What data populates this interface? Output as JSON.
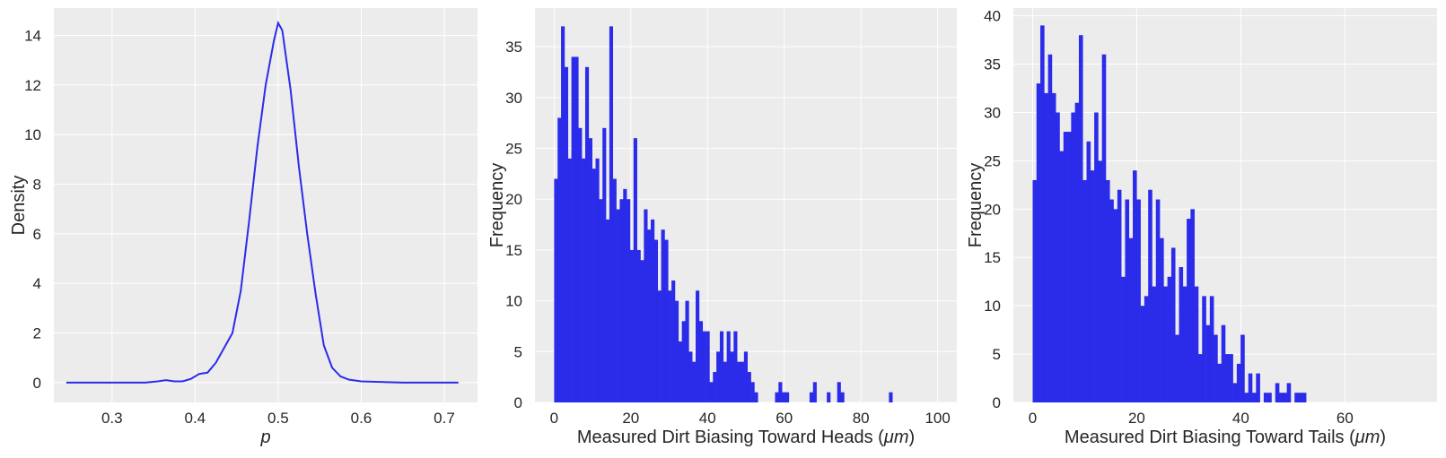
{
  "chart_data": [
    {
      "type": "line",
      "xlabel": "p",
      "ylabel": "Density",
      "xlim": [
        0.23,
        0.74
      ],
      "ylim": [
        -0.8,
        15.1
      ],
      "xticks": [
        0.3,
        0.4,
        0.5,
        0.6,
        0.7
      ],
      "xtick_labels": [
        "0.3",
        "0.4",
        "0.5",
        "0.6",
        "0.7"
      ],
      "yticks": [
        0,
        2,
        4,
        6,
        8,
        10,
        12,
        14
      ],
      "ytick_labels": [
        "0",
        "2",
        "4",
        "6",
        "8",
        "10",
        "12",
        "14"
      ],
      "grid": true,
      "color": "#2b2bea",
      "x": [
        0.245,
        0.3,
        0.34,
        0.355,
        0.365,
        0.375,
        0.385,
        0.395,
        0.405,
        0.415,
        0.425,
        0.435,
        0.445,
        0.455,
        0.465,
        0.475,
        0.485,
        0.495,
        0.5,
        0.505,
        0.515,
        0.525,
        0.535,
        0.545,
        0.555,
        0.565,
        0.575,
        0.585,
        0.6,
        0.65,
        0.717
      ],
      "y": [
        0.0,
        0.0,
        0.0,
        0.05,
        0.1,
        0.05,
        0.05,
        0.15,
        0.35,
        0.4,
        0.8,
        1.4,
        2.0,
        3.7,
        6.5,
        9.5,
        12.0,
        13.8,
        14.5,
        14.2,
        11.8,
        8.7,
        6.0,
        3.6,
        1.5,
        0.6,
        0.25,
        0.12,
        0.05,
        0.0,
        0.0
      ]
    },
    {
      "type": "bar",
      "xlabel": "Measured Dirt Biasing Toward Heads (",
      "xlabel_unit": "μm",
      "xlabel_close": ")",
      "ylabel": "Frequency",
      "xlim": [
        -5,
        105
      ],
      "ylim": [
        0,
        38.8
      ],
      "xticks": [
        0,
        20,
        40,
        60,
        80,
        100
      ],
      "xtick_labels": [
        "0",
        "20",
        "40",
        "60",
        "80",
        "100"
      ],
      "yticks": [
        0,
        5,
        10,
        15,
        20,
        25,
        30,
        35
      ],
      "ytick_labels": [
        "0",
        "5",
        "10",
        "15",
        "20",
        "25",
        "30",
        "35"
      ],
      "grid": true,
      "color": "#2b2bea",
      "bin_start": 0,
      "bin_width": 0.9,
      "values": [
        22,
        28,
        37,
        33,
        24,
        34,
        34,
        27,
        24,
        33,
        26,
        23,
        24,
        20,
        27,
        18,
        37,
        22,
        19,
        20,
        21,
        20,
        15,
        26,
        15,
        14,
        19,
        17,
        18,
        16,
        11,
        17,
        16,
        11,
        12,
        10,
        6,
        8,
        10,
        5,
        4,
        11,
        8,
        7,
        7,
        2,
        3,
        5,
        7,
        4,
        7,
        5,
        7,
        4,
        4,
        5,
        3,
        2,
        1,
        0,
        0,
        0,
        0,
        0,
        1,
        2,
        1,
        1,
        0,
        0,
        0,
        0,
        0,
        0,
        1,
        2,
        0,
        0,
        0,
        1,
        0,
        0,
        2,
        1,
        0,
        0,
        0,
        0,
        0,
        0,
        0,
        0,
        0,
        0,
        0,
        0,
        0,
        1,
        0,
        0,
        0,
        0,
        0,
        0,
        0,
        0,
        0,
        0,
        0,
        0,
        0,
        0,
        0,
        0,
        0,
        0,
        0,
        0,
        0,
        0,
        0,
        0,
        0,
        0,
        0,
        0
      ]
    },
    {
      "type": "bar",
      "xlabel": "Measured Dirt Biasing Toward Tails (",
      "xlabel_unit": "μm",
      "xlabel_close": ")",
      "ylabel": "Frequency",
      "xlim": [
        -3.7,
        77.7
      ],
      "ylim": [
        0,
        40.8
      ],
      "xticks": [
        0,
        20,
        40,
        60
      ],
      "xtick_labels": [
        "0",
        "20",
        "40",
        "60"
      ],
      "yticks": [
        0,
        5,
        10,
        15,
        20,
        25,
        30,
        35,
        40
      ],
      "ytick_labels": [
        "0",
        "5",
        "10",
        "15",
        "20",
        "25",
        "30",
        "35",
        "40"
      ],
      "grid": true,
      "color": "#2b2bea",
      "bin_start": 0,
      "bin_width": 0.74,
      "values": [
        23,
        33,
        39,
        32,
        36,
        32,
        30,
        26,
        28,
        28,
        30,
        31,
        38,
        23,
        27,
        24,
        30,
        25,
        36,
        23,
        21,
        20,
        22,
        13,
        21,
        17,
        24,
        21,
        10,
        11,
        22,
        12,
        21,
        17,
        12,
        13,
        16,
        7,
        14,
        12,
        19,
        20,
        12,
        5,
        11,
        8,
        11,
        7,
        4,
        8,
        5,
        5,
        2,
        4,
        7,
        1,
        3,
        1,
        3,
        0,
        1,
        1,
        0,
        2,
        1,
        1,
        2,
        0,
        1,
        1,
        1,
        0,
        0,
        0,
        0,
        0,
        0,
        0,
        0,
        0,
        0,
        0,
        0,
        0,
        0,
        0,
        0,
        0,
        0,
        0,
        0,
        0,
        0,
        0,
        0,
        0,
        0,
        0,
        0,
        0
      ]
    }
  ]
}
